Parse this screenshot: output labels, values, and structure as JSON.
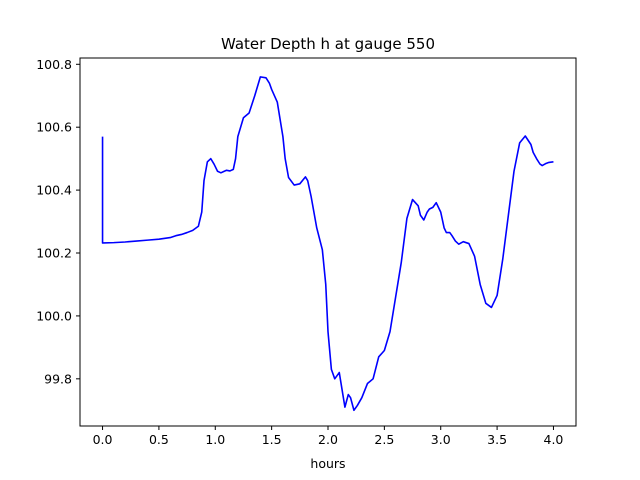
{
  "chart_data": {
    "type": "line",
    "title": "Water Depth h at gauge 550",
    "xlabel": "hours",
    "ylabel": "",
    "xlim": [
      -0.2,
      4.2
    ],
    "ylim": [
      99.65,
      100.82
    ],
    "xticks": [
      0.0,
      0.5,
      1.0,
      1.5,
      2.0,
      2.5,
      3.0,
      3.5,
      4.0
    ],
    "xtick_labels": [
      "0.0",
      "0.5",
      "1.0",
      "1.5",
      "2.0",
      "2.5",
      "3.0",
      "3.5",
      "4.0"
    ],
    "yticks": [
      99.8,
      100.0,
      100.2,
      100.4,
      100.6,
      100.8
    ],
    "ytick_labels": [
      "99.8",
      "100.0",
      "100.2",
      "100.4",
      "100.6",
      "100.8"
    ],
    "grid": false,
    "series": [
      {
        "color": "#0000ff",
        "x": [
          0.0,
          0.0,
          0.01,
          0.1,
          0.2,
          0.3,
          0.4,
          0.5,
          0.6,
          0.65,
          0.7,
          0.75,
          0.8,
          0.85,
          0.88,
          0.9,
          0.93,
          0.96,
          0.99,
          1.02,
          1.05,
          1.08,
          1.1,
          1.13,
          1.16,
          1.18,
          1.2,
          1.25,
          1.3,
          1.35,
          1.4,
          1.45,
          1.48,
          1.5,
          1.55,
          1.6,
          1.62,
          1.65,
          1.7,
          1.75,
          1.8,
          1.82,
          1.85,
          1.9,
          1.95,
          1.98,
          2.0,
          2.03,
          2.06,
          2.1,
          2.15,
          2.18,
          2.2,
          2.23,
          2.26,
          2.3,
          2.35,
          2.4,
          2.45,
          2.5,
          2.55,
          2.6,
          2.65,
          2.7,
          2.75,
          2.8,
          2.82,
          2.85,
          2.88,
          2.9,
          2.93,
          2.96,
          3.0,
          3.03,
          3.05,
          3.08,
          3.1,
          3.13,
          3.16,
          3.2,
          3.25,
          3.3,
          3.35,
          3.4,
          3.45,
          3.5,
          3.55,
          3.6,
          3.65,
          3.7,
          3.75,
          3.8,
          3.82,
          3.85,
          3.88,
          3.9,
          3.93,
          3.96,
          4.0
        ],
        "y": [
          100.57,
          100.232,
          100.232,
          100.233,
          100.235,
          100.238,
          100.241,
          100.244,
          100.249,
          100.255,
          100.259,
          100.265,
          100.272,
          100.285,
          100.33,
          100.43,
          100.49,
          100.5,
          100.482,
          100.46,
          100.455,
          100.46,
          100.463,
          100.461,
          100.466,
          100.5,
          100.57,
          100.63,
          100.645,
          100.7,
          100.76,
          100.757,
          100.74,
          100.72,
          100.68,
          100.57,
          100.5,
          100.44,
          100.416,
          100.42,
          100.442,
          100.43,
          100.38,
          100.28,
          100.21,
          100.1,
          99.95,
          99.83,
          99.8,
          99.82,
          99.71,
          99.75,
          99.74,
          99.7,
          99.715,
          99.74,
          99.785,
          99.8,
          99.87,
          99.89,
          99.95,
          100.06,
          100.17,
          100.31,
          100.37,
          100.35,
          100.32,
          100.305,
          100.33,
          100.34,
          100.345,
          100.36,
          100.33,
          100.28,
          100.265,
          100.265,
          100.255,
          100.238,
          100.228,
          100.236,
          100.23,
          100.19,
          100.1,
          100.04,
          100.027,
          100.065,
          100.18,
          100.32,
          100.46,
          100.55,
          100.572,
          100.545,
          100.52,
          100.5,
          100.483,
          100.478,
          100.484,
          100.488,
          100.49
        ]
      }
    ]
  }
}
